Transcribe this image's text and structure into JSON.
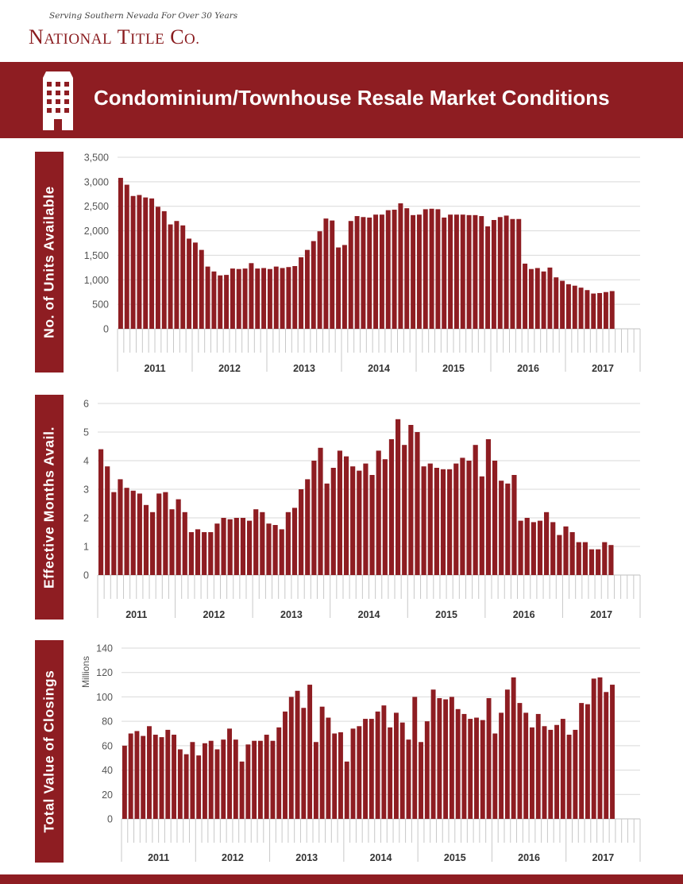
{
  "logo": {
    "tagline": "Serving Southern Nevada For Over 30 Years",
    "name_n": "N",
    "name_ational": "ATIONAL",
    "name_t": "T",
    "name_itle": "ITLE",
    "name_c": "C",
    "name_o": "O."
  },
  "header": {
    "title": "Condominium/Townhouse Resale Market Conditions",
    "icon": "building-icon"
  },
  "colors": {
    "brand": "#8e1d22",
    "bar": "#8e1d22",
    "grid": "#d9d9d9"
  },
  "chart_data": [
    {
      "type": "bar",
      "side_label": "No. of Units Available",
      "ylabel": "",
      "ylim": [
        0,
        3500
      ],
      "yticks": [
        0,
        500,
        1000,
        1500,
        2000,
        2500,
        3000,
        3500
      ],
      "tick_labels": [
        "0",
        "500",
        "1,000",
        "1,500",
        "2,000",
        "2,500",
        "3,000",
        "3,500"
      ],
      "year_labels": [
        "2011",
        "2012",
        "2013",
        "2014",
        "2015",
        "2016",
        "2017"
      ],
      "values": [
        3080,
        2940,
        2710,
        2730,
        2680,
        2660,
        2490,
        2400,
        2130,
        2200,
        2110,
        1840,
        1760,
        1610,
        1270,
        1170,
        1090,
        1100,
        1230,
        1220,
        1230,
        1340,
        1230,
        1240,
        1220,
        1270,
        1240,
        1260,
        1280,
        1460,
        1610,
        1790,
        1990,
        2250,
        2210,
        1660,
        1710,
        2200,
        2300,
        2280,
        2270,
        2330,
        2330,
        2420,
        2430,
        2560,
        2460,
        2320,
        2330,
        2440,
        2450,
        2440,
        2270,
        2330,
        2330,
        2330,
        2320,
        2320,
        2300,
        2090,
        2220,
        2280,
        2310,
        2240,
        2240,
        1330,
        1220,
        1240,
        1170,
        1250,
        1050,
        980,
        910,
        880,
        840,
        790,
        720,
        730,
        750,
        770
      ]
    },
    {
      "type": "bar",
      "side_label": "Effective Months Avail.",
      "ylabel": "",
      "ylim": [
        0,
        6
      ],
      "yticks": [
        0,
        1,
        2,
        3,
        4,
        5,
        6
      ],
      "tick_labels": [
        "0",
        "1",
        "2",
        "3",
        "4",
        "5",
        "6"
      ],
      "year_labels": [
        "2011",
        "2012",
        "2013",
        "2014",
        "2015",
        "2016",
        "2017"
      ],
      "values": [
        4.4,
        3.8,
        2.9,
        3.35,
        3.05,
        2.95,
        2.85,
        2.45,
        2.2,
        2.85,
        2.9,
        2.3,
        2.65,
        2.2,
        1.5,
        1.6,
        1.5,
        1.5,
        1.8,
        2.0,
        1.95,
        2.0,
        2.0,
        1.9,
        2.3,
        2.2,
        1.8,
        1.75,
        1.6,
        2.2,
        2.35,
        3.0,
        3.35,
        4.0,
        4.45,
        3.2,
        3.75,
        4.35,
        4.15,
        3.8,
        3.65,
        3.9,
        3.5,
        4.35,
        4.05,
        4.75,
        5.45,
        4.55,
        5.25,
        5.0,
        3.8,
        3.9,
        3.75,
        3.7,
        3.7,
        3.9,
        4.1,
        4.0,
        4.55,
        3.45,
        4.75,
        4.0,
        3.3,
        3.2,
        3.5,
        1.9,
        2.0,
        1.85,
        1.9,
        2.2,
        1.85,
        1.4,
        1.7,
        1.5,
        1.15,
        1.15,
        0.9,
        0.9,
        1.15,
        1.05
      ]
    },
    {
      "type": "bar",
      "side_label": "Total Value of Closings",
      "ylabel": "Millions",
      "ylim": [
        0,
        140
      ],
      "yticks": [
        0,
        20,
        40,
        60,
        80,
        100,
        120,
        140
      ],
      "tick_labels": [
        "0",
        "20",
        "40",
        "60",
        "80",
        "100",
        "120",
        "140"
      ],
      "year_labels": [
        "2011",
        "2012",
        "2013",
        "2014",
        "2015",
        "2016",
        "2017"
      ],
      "values": [
        60,
        70,
        72,
        68,
        76,
        69,
        67,
        73,
        69,
        57,
        53,
        63,
        52,
        62,
        64,
        57,
        65,
        74,
        65,
        47,
        61,
        64,
        64,
        69,
        64,
        75,
        88,
        100,
        105,
        91,
        110,
        63,
        92,
        83,
        70,
        71,
        47,
        74,
        76,
        82,
        82,
        88,
        93,
        75,
        87,
        79,
        65,
        100,
        63,
        80,
        106,
        99,
        98,
        100,
        90,
        86,
        82,
        83,
        81,
        99,
        70,
        87,
        106,
        116,
        95,
        87,
        75,
        86,
        76,
        73,
        77,
        82,
        69,
        73,
        95,
        94,
        115,
        116,
        104,
        110
      ]
    }
  ]
}
